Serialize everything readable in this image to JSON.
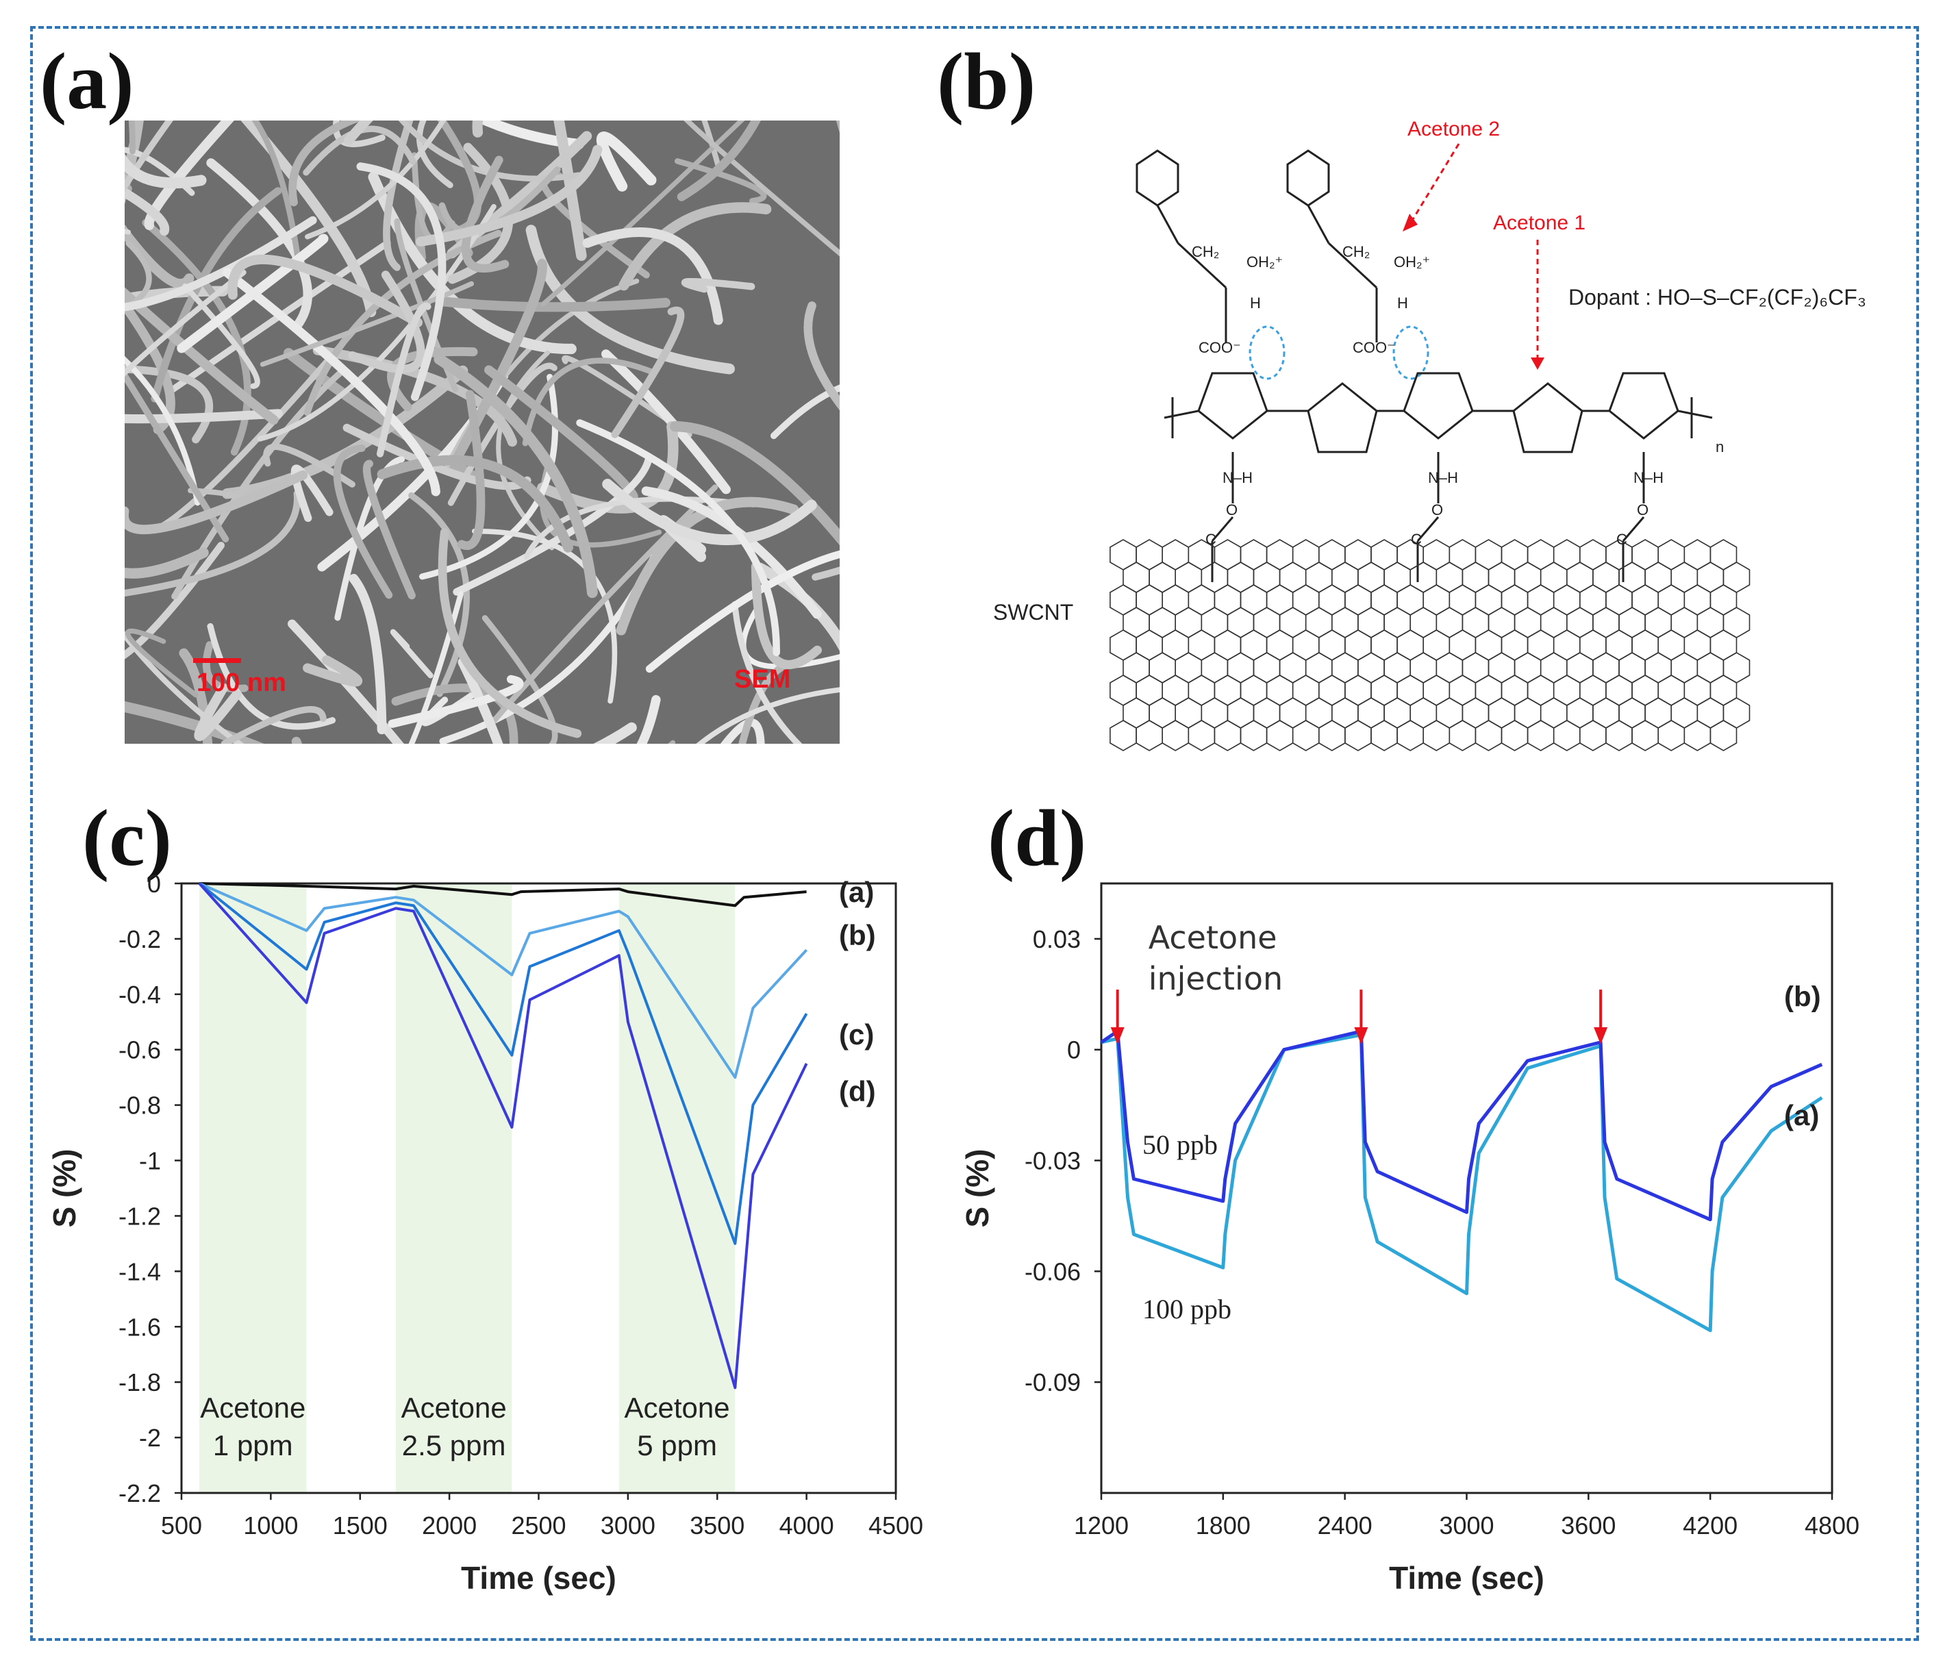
{
  "panels": {
    "a": {
      "label": "(a)",
      "scale_bar": "100 nm",
      "mode": "SEM"
    },
    "b": {
      "label": "(b)",
      "acetone1": "Acetone 1",
      "acetone2": "Acetone 2",
      "dopant": "Dopant : HO–S–CF₂(CF₂)₆CF₃",
      "substrate": "SWCNT",
      "coo": "COO⁻",
      "ch2": "CH₂",
      "oh2": "OH₂⁺",
      "h": "H",
      "nh": "N–H",
      "n_sub": "n",
      "o": "O",
      "c": "C"
    },
    "c": {
      "label": "(c)"
    },
    "d": {
      "label": "(d)"
    }
  },
  "chart_data": [
    {
      "panel": "c",
      "type": "line",
      "xlabel": "Time (sec)",
      "ylabel": "S (%)",
      "xlim": [
        500,
        4500
      ],
      "ylim": [
        -2.2,
        0
      ],
      "xticks": [
        500,
        1000,
        1500,
        2000,
        2500,
        3000,
        3500,
        4000,
        4500
      ],
      "yticks": [
        0,
        -0.2,
        -0.4,
        -0.6,
        -0.8,
        -1,
        -1.2,
        -1.4,
        -1.6,
        -1.8,
        -2,
        -2.2
      ],
      "ytick_labels": [
        "0",
        "-0.2",
        "-0.4",
        "-0.6",
        "-0.8",
        "-1",
        "-1.2",
        "-1.4",
        "-1.6",
        "-1.8",
        "-2",
        "-2.2"
      ],
      "exposure_windows": [
        {
          "x0": 600,
          "x1": 1200,
          "label_line1": "Acetone",
          "label_line2": "1 ppm"
        },
        {
          "x0": 1700,
          "x1": 2350,
          "label_line1": "Acetone",
          "label_line2": "2.5 ppm"
        },
        {
          "x0": 2950,
          "x1": 3600,
          "label_line1": "Acetone",
          "label_line2": "5 ppm"
        }
      ],
      "series": [
        {
          "name": "(a)",
          "color": "#111111",
          "x": [
            600,
            1200,
            1700,
            1800,
            2350,
            2400,
            2950,
            3000,
            3600,
            3650,
            4000
          ],
          "y": [
            0,
            -0.01,
            -0.02,
            -0.01,
            -0.04,
            -0.03,
            -0.02,
            -0.03,
            -0.08,
            -0.05,
            -0.03
          ]
        },
        {
          "name": "(b)",
          "color": "#5aa8e6",
          "x": [
            600,
            1200,
            1300,
            1700,
            1800,
            2350,
            2450,
            2950,
            3000,
            3600,
            3700,
            4000
          ],
          "y": [
            0,
            -0.17,
            -0.09,
            -0.05,
            -0.06,
            -0.33,
            -0.18,
            -0.1,
            -0.12,
            -0.7,
            -0.45,
            -0.24
          ]
        },
        {
          "name": "(c)",
          "color": "#1f77d6",
          "x": [
            600,
            1200,
            1300,
            1700,
            1800,
            2350,
            2450,
            2950,
            3000,
            3600,
            3700,
            4000
          ],
          "y": [
            0,
            -0.31,
            -0.14,
            -0.07,
            -0.08,
            -0.62,
            -0.3,
            -0.17,
            -0.25,
            -1.3,
            -0.8,
            -0.47
          ]
        },
        {
          "name": "(d)",
          "color": "#3b3bdc",
          "x": [
            600,
            1200,
            1300,
            1700,
            1800,
            2350,
            2450,
            2950,
            3000,
            3600,
            3700,
            4000
          ],
          "y": [
            0,
            -0.43,
            -0.18,
            -0.09,
            -0.1,
            -0.88,
            -0.42,
            -0.26,
            -0.5,
            -1.82,
            -1.05,
            -0.65
          ]
        }
      ]
    },
    {
      "panel": "d",
      "type": "line",
      "xlabel": "Time (sec)",
      "ylabel": "S (%)",
      "xlim": [
        1200,
        4800
      ],
      "ylim": [
        -0.12,
        0.045
      ],
      "xticks": [
        1200,
        1800,
        2400,
        3000,
        3600,
        4200,
        4800
      ],
      "yticks": [
        0.03,
        0,
        -0.03,
        -0.06,
        -0.09
      ],
      "ytick_labels": [
        "0.03",
        "0",
        "-0.03",
        "-0.06",
        "-0.09"
      ],
      "annotation_line1": "Acetone",
      "annotation_line2": "injection",
      "injection_x": [
        1280,
        2480,
        3660
      ],
      "series": [
        {
          "name": "(a)",
          "conc": "100 ppb",
          "color": "#2ea7d8",
          "x": [
            1200,
            1280,
            1330,
            1360,
            1800,
            1810,
            1860,
            2100,
            2480,
            2500,
            2560,
            3000,
            3010,
            3060,
            3300,
            3660,
            3680,
            3740,
            4200,
            4210,
            4260,
            4500,
            4750
          ],
          "y": [
            0.002,
            0.003,
            -0.04,
            -0.05,
            -0.059,
            -0.05,
            -0.03,
            0.0,
            0.004,
            -0.04,
            -0.052,
            -0.066,
            -0.05,
            -0.028,
            -0.005,
            0.001,
            -0.04,
            -0.062,
            -0.076,
            -0.06,
            -0.04,
            -0.022,
            -0.013
          ]
        },
        {
          "name": "(b)",
          "conc": "50 ppb",
          "color": "#2b35e0",
          "x": [
            1200,
            1280,
            1330,
            1360,
            1800,
            1810,
            1860,
            2100,
            2480,
            2500,
            2560,
            3000,
            3010,
            3060,
            3300,
            3660,
            3680,
            3740,
            4200,
            4210,
            4260,
            4500,
            4750
          ],
          "y": [
            0.002,
            0.005,
            -0.025,
            -0.035,
            -0.041,
            -0.035,
            -0.02,
            0.0,
            0.005,
            -0.025,
            -0.033,
            -0.044,
            -0.035,
            -0.02,
            -0.003,
            0.002,
            -0.025,
            -0.035,
            -0.046,
            -0.035,
            -0.025,
            -0.01,
            -0.004
          ]
        }
      ]
    }
  ]
}
